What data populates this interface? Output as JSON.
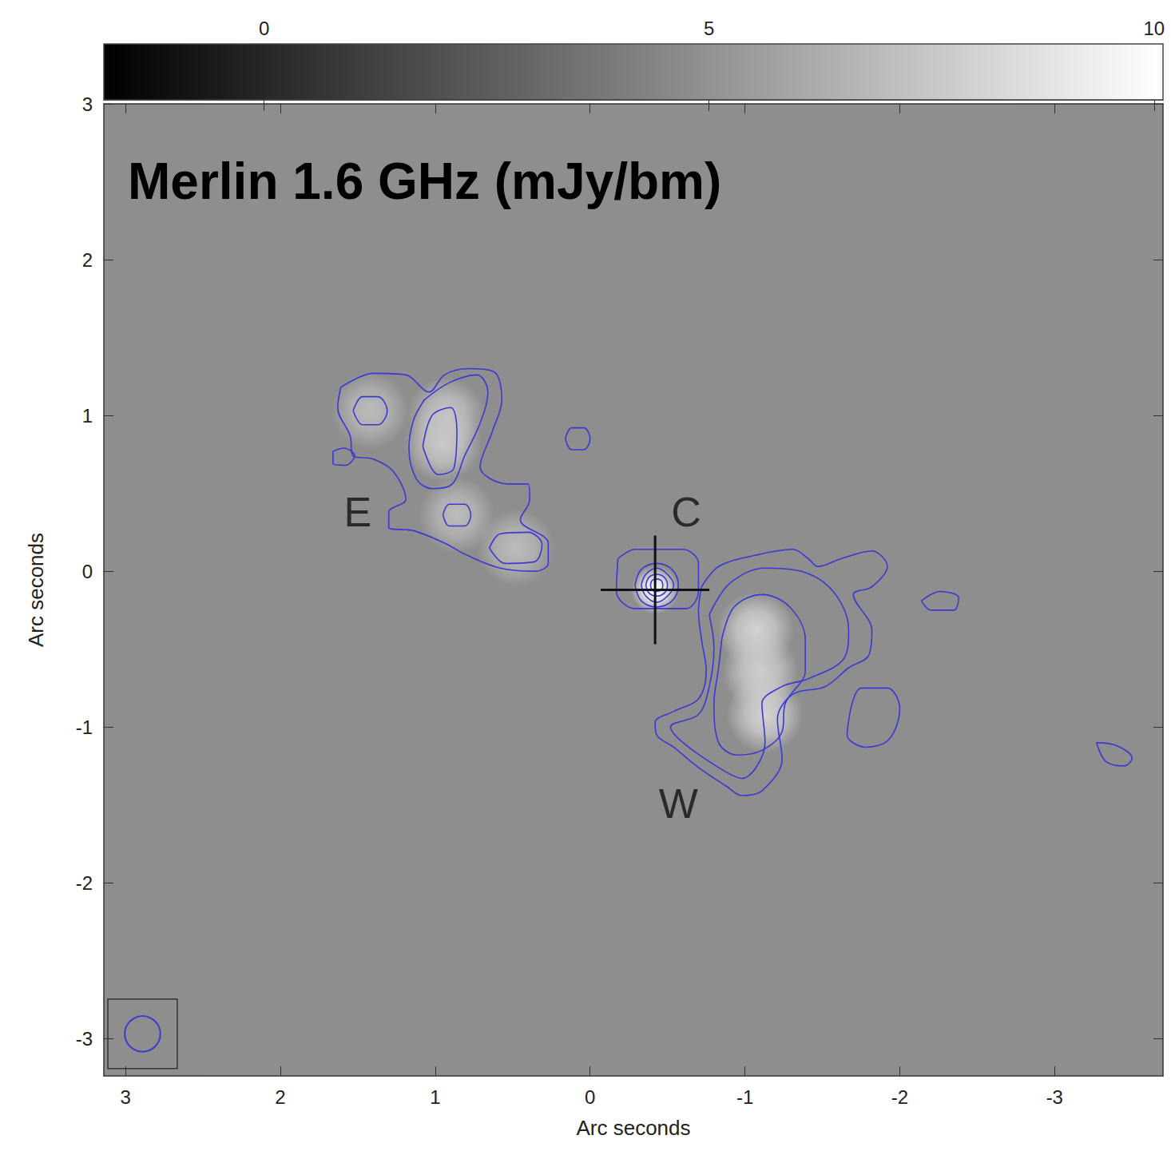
{
  "chart_data": {
    "type": "contour",
    "title": "Merlin 1.6 GHz (mJy/bm)",
    "x_label": "Arc seconds",
    "y_label": "Arc seconds",
    "xlim": [
      3.14,
      -3.7
    ],
    "xticks": [
      3,
      2,
      1,
      0,
      -1,
      -2,
      -3
    ],
    "ylim": [
      -3.24,
      3
    ],
    "yticks": [
      -3,
      -2,
      -1,
      0,
      1,
      2,
      3
    ],
    "grid": false,
    "color": "#3a3ad2",
    "colorbar": {
      "range": [
        -1.8,
        10.1
      ],
      "ticks": [
        0,
        5,
        10
      ]
    },
    "peaks": [
      {
        "x": -0.42,
        "y": -0.12,
        "value": 10
      },
      {
        "x": -1.07,
        "y": -0.38,
        "value": 5.5
      },
      {
        "x": -1.1,
        "y": -0.65,
        "value": 5
      },
      {
        "x": -1.13,
        "y": -0.92,
        "value": 5.5
      },
      {
        "x": 0.95,
        "y": 0.82,
        "value": 4.5
      },
      {
        "x": 0.93,
        "y": 1.0,
        "value": 4
      },
      {
        "x": 1.42,
        "y": 1.03,
        "value": 3
      },
      {
        "x": 0.86,
        "y": 0.36,
        "value": 3
      },
      {
        "x": 0.48,
        "y": 0.15,
        "value": 3
      }
    ],
    "contours": [
      [
        [
          -0.18,
          0.08
        ],
        [
          -0.29,
          0.14
        ],
        [
          -0.6,
          0.14
        ],
        [
          -0.7,
          0.05
        ],
        [
          -0.7,
          -0.13
        ],
        [
          -0.62,
          -0.24
        ],
        [
          -0.29,
          -0.24
        ],
        [
          -0.17,
          -0.13
        ]
      ],
      [
        [
          -0.29,
          -0.09
        ],
        [
          -0.33,
          0.01
        ],
        [
          -0.43,
          0.05
        ],
        [
          -0.53,
          0.01
        ],
        [
          -0.57,
          -0.09
        ],
        [
          -0.53,
          -0.19
        ],
        [
          -0.43,
          -0.23
        ],
        [
          -0.33,
          -0.19
        ]
      ],
      [
        [
          -0.33,
          -0.09
        ],
        [
          -0.36,
          -0.02
        ],
        [
          -0.43,
          0.02
        ],
        [
          -0.5,
          -0.02
        ],
        [
          -0.54,
          -0.09
        ],
        [
          -0.5,
          -0.16
        ],
        [
          -0.43,
          -0.2
        ],
        [
          -0.36,
          -0.16
        ]
      ],
      [
        [
          -0.36,
          -0.09
        ],
        [
          -0.38,
          -0.04
        ],
        [
          -0.43,
          -0.02
        ],
        [
          -0.48,
          -0.04
        ],
        [
          -0.5,
          -0.09
        ],
        [
          -0.48,
          -0.14
        ],
        [
          -0.43,
          -0.16
        ],
        [
          -0.38,
          -0.14
        ]
      ],
      [
        [
          -0.39,
          -0.09
        ],
        [
          -0.4,
          -0.06
        ],
        [
          -0.43,
          -0.05
        ],
        [
          -0.46,
          -0.06
        ],
        [
          -0.47,
          -0.09
        ],
        [
          -0.46,
          -0.12
        ],
        [
          -0.43,
          -0.13
        ],
        [
          -0.4,
          -0.12
        ]
      ],
      [
        [
          1.61,
          1.18
        ],
        [
          1.4,
          1.27
        ],
        [
          1.19,
          1.26
        ],
        [
          1.04,
          1.15
        ],
        [
          0.94,
          1.26
        ],
        [
          0.79,
          1.3
        ],
        [
          0.62,
          1.28
        ],
        [
          0.57,
          1.1
        ],
        [
          0.63,
          0.9
        ],
        [
          0.71,
          0.67
        ],
        [
          0.53,
          0.56
        ],
        [
          0.4,
          0.56
        ],
        [
          0.39,
          0.46
        ],
        [
          0.45,
          0.33
        ],
        [
          0.27,
          0.18
        ],
        [
          0.27,
          0.05
        ],
        [
          0.35,
          0.0
        ],
        [
          0.58,
          0.02
        ],
        [
          0.79,
          0.1
        ],
        [
          0.94,
          0.18
        ],
        [
          1.14,
          0.26
        ],
        [
          1.3,
          0.28
        ],
        [
          1.3,
          0.38
        ],
        [
          1.19,
          0.46
        ],
        [
          1.27,
          0.64
        ],
        [
          1.4,
          0.72
        ],
        [
          1.53,
          0.74
        ],
        [
          1.55,
          0.87
        ],
        [
          1.63,
          1.05
        ]
      ],
      [
        [
          1.66,
          0.77
        ],
        [
          1.59,
          0.79
        ],
        [
          1.52,
          0.74
        ],
        [
          1.58,
          0.68
        ],
        [
          1.66,
          0.69
        ]
      ],
      [
        [
          1.07,
          1.1
        ],
        [
          0.91,
          1.21
        ],
        [
          0.73,
          1.26
        ],
        [
          0.66,
          1.15
        ],
        [
          0.71,
          0.95
        ],
        [
          0.81,
          0.74
        ],
        [
          0.89,
          0.56
        ],
        [
          1.02,
          0.53
        ],
        [
          1.12,
          0.59
        ],
        [
          1.17,
          0.79
        ],
        [
          1.14,
          0.97
        ]
      ],
      [
        [
          1.53,
          1.03
        ],
        [
          1.47,
          1.12
        ],
        [
          1.37,
          1.12
        ],
        [
          1.31,
          1.03
        ],
        [
          1.37,
          0.94
        ],
        [
          1.47,
          0.94
        ]
      ],
      [
        [
          0.95,
          0.36
        ],
        [
          0.91,
          0.43
        ],
        [
          0.81,
          0.43
        ],
        [
          0.77,
          0.36
        ],
        [
          0.81,
          0.29
        ],
        [
          0.91,
          0.29
        ]
      ],
      [
        [
          0.65,
          0.15
        ],
        [
          0.58,
          0.24
        ],
        [
          0.4,
          0.25
        ],
        [
          0.31,
          0.17
        ],
        [
          0.36,
          0.06
        ],
        [
          0.55,
          0.05
        ]
      ],
      [
        [
          1.08,
          0.8
        ],
        [
          1.02,
          1.0
        ],
        [
          0.9,
          1.05
        ],
        [
          0.86,
          0.9
        ],
        [
          0.88,
          0.66
        ],
        [
          0.98,
          0.62
        ]
      ],
      [
        [
          0.16,
          0.85
        ],
        [
          0.12,
          0.92
        ],
        [
          0.04,
          0.92
        ],
        [
          0.0,
          0.85
        ],
        [
          0.04,
          0.78
        ],
        [
          0.12,
          0.78
        ]
      ],
      [
        [
          -0.72,
          -0.1
        ],
        [
          -0.83,
          0.03
        ],
        [
          -1.06,
          0.1
        ],
        [
          -1.31,
          0.14
        ],
        [
          -1.41,
          0.08
        ],
        [
          -1.47,
          0.03
        ],
        [
          -1.62,
          0.08
        ],
        [
          -1.82,
          0.13
        ],
        [
          -1.92,
          0.03
        ],
        [
          -1.82,
          -0.1
        ],
        [
          -1.7,
          -0.15
        ],
        [
          -1.82,
          -0.38
        ],
        [
          -1.8,
          -0.54
        ],
        [
          -1.67,
          -0.62
        ],
        [
          -1.52,
          -0.74
        ],
        [
          -1.31,
          -0.79
        ],
        [
          -1.21,
          -0.95
        ],
        [
          -1.24,
          -1.21
        ],
        [
          -1.11,
          -1.41
        ],
        [
          -0.98,
          -1.44
        ],
        [
          -0.88,
          -1.38
        ],
        [
          -0.7,
          -1.26
        ],
        [
          -0.54,
          -1.13
        ],
        [
          -0.43,
          -1.05
        ],
        [
          -0.42,
          -0.97
        ],
        [
          -0.54,
          -0.9
        ],
        [
          -0.7,
          -0.82
        ],
        [
          -0.75,
          -0.64
        ],
        [
          -0.72,
          -0.44
        ],
        [
          -0.7,
          -0.26
        ]
      ],
      [
        [
          -0.77,
          -0.28
        ],
        [
          -0.9,
          -0.08
        ],
        [
          -1.13,
          0.02
        ],
        [
          -1.36,
          0.0
        ],
        [
          -1.57,
          -0.13
        ],
        [
          -1.67,
          -0.38
        ],
        [
          -1.64,
          -0.56
        ],
        [
          -1.41,
          -0.69
        ],
        [
          -1.24,
          -0.74
        ],
        [
          -1.11,
          -0.85
        ],
        [
          -1.13,
          -1.1
        ],
        [
          -0.98,
          -1.33
        ],
        [
          -0.83,
          -1.26
        ],
        [
          -0.6,
          -1.1
        ],
        [
          -0.52,
          -1.0
        ],
        [
          -0.7,
          -0.92
        ],
        [
          -0.77,
          -0.74
        ],
        [
          -0.8,
          -0.49
        ]
      ],
      [
        [
          -0.85,
          -0.44
        ],
        [
          -0.93,
          -0.23
        ],
        [
          -1.11,
          -0.15
        ],
        [
          -1.29,
          -0.23
        ],
        [
          -1.39,
          -0.44
        ],
        [
          -1.39,
          -0.64
        ],
        [
          -1.26,
          -0.85
        ],
        [
          -1.24,
          -1.03
        ],
        [
          -1.11,
          -1.15
        ],
        [
          -0.95,
          -1.18
        ],
        [
          -0.83,
          -1.1
        ],
        [
          -0.8,
          -0.85
        ],
        [
          -0.83,
          -0.62
        ]
      ],
      [
        [
          -1.68,
          -0.9
        ],
        [
          -1.75,
          -0.75
        ],
        [
          -1.92,
          -0.75
        ],
        [
          -2.0,
          -0.88
        ],
        [
          -1.93,
          -1.08
        ],
        [
          -1.78,
          -1.13
        ],
        [
          -1.66,
          -1.05
        ]
      ],
      [
        [
          -2.14,
          -0.19
        ],
        [
          -2.26,
          -0.13
        ],
        [
          -2.38,
          -0.17
        ],
        [
          -2.35,
          -0.25
        ],
        [
          -2.2,
          -0.25
        ]
      ],
      [
        [
          -3.27,
          -1.1
        ],
        [
          -3.4,
          -1.12
        ],
        [
          -3.5,
          -1.2
        ],
        [
          -3.45,
          -1.25
        ],
        [
          -3.33,
          -1.22
        ]
      ]
    ],
    "cross": {
      "x": -0.42,
      "y": -0.12
    },
    "beam": {
      "x": 2.89,
      "y": -2.97,
      "size": 0.23
    },
    "annotations": [
      {
        "text": "E",
        "x": 1.5,
        "y": 0.38
      },
      {
        "text": "C",
        "x": -0.62,
        "y": 0.38
      },
      {
        "text": "W",
        "x": -0.57,
        "y": -1.49
      }
    ]
  }
}
